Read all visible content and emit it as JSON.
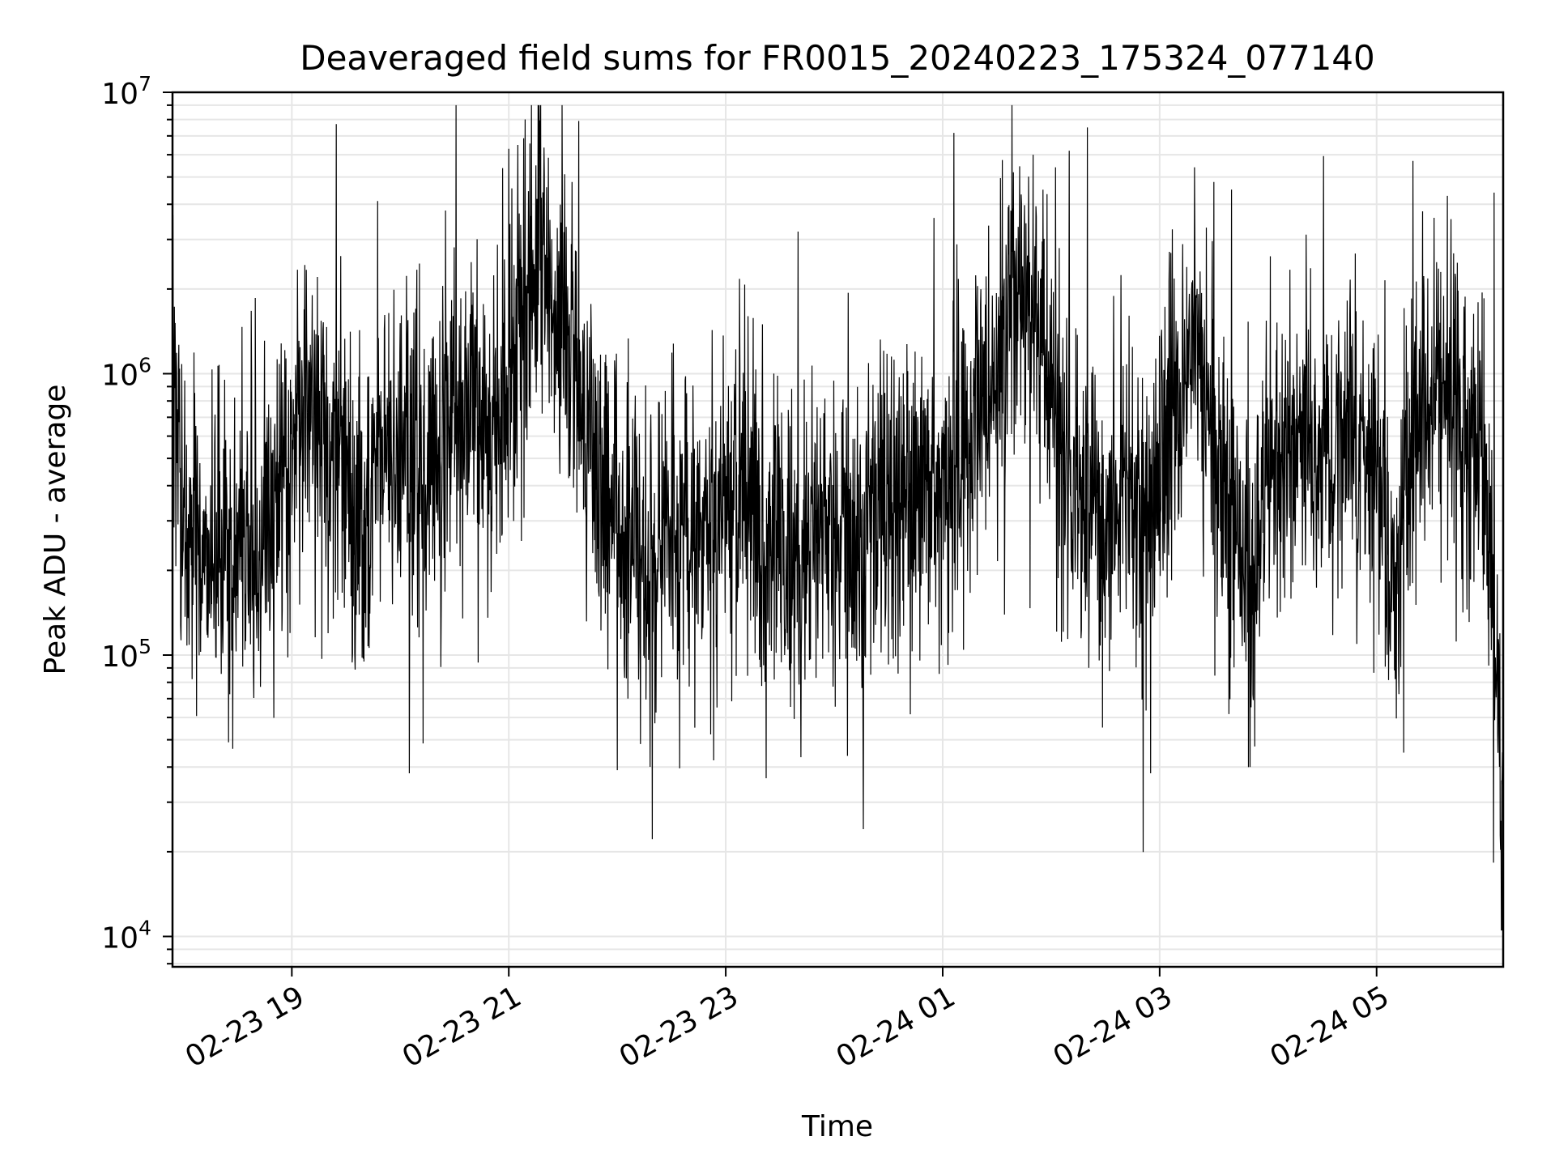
{
  "chart_data": {
    "type": "line",
    "title": "Deaveraged field sums for FR0015_20240223_175324_077140",
    "xlabel": "Time",
    "ylabel": "Peak ADU - average",
    "y_scale": "log",
    "ylim": [
      7800,
      10000000
    ],
    "xlim": [
      "2024-02-23 17:54",
      "2024-02-24 06:10"
    ],
    "x_ticks": [
      {
        "value": "2024-02-23 19:00",
        "label": "02-23 19"
      },
      {
        "value": "2024-02-23 21:00",
        "label": "02-23 21"
      },
      {
        "value": "2024-02-23 23:00",
        "label": "02-23 23"
      },
      {
        "value": "2024-02-24 01:00",
        "label": "02-24 01"
      },
      {
        "value": "2024-02-24 03:00",
        "label": "02-24 03"
      },
      {
        "value": "2024-02-24 05:00",
        "label": "02-24 05"
      }
    ],
    "y_ticks": [
      {
        "value": 10000,
        "base": "10",
        "exp": "4"
      },
      {
        "value": 100000,
        "base": "10",
        "exp": "5"
      },
      {
        "value": 1000000,
        "base": "10",
        "exp": "6"
      },
      {
        "value": 10000000,
        "base": "10",
        "exp": "7"
      }
    ],
    "grid": true,
    "line_color": "#000000",
    "series": [
      {
        "x": [
          "2024-02-23 17:54",
          "2024-02-23 18:00",
          "2024-02-23 18:10",
          "2024-02-23 18:20",
          "2024-02-23 18:30",
          "2024-02-23 18:40",
          "2024-02-23 18:50",
          "2024-02-23 19:00",
          "2024-02-23 19:10",
          "2024-02-23 19:20",
          "2024-02-23 19:30",
          "2024-02-23 19:40",
          "2024-02-23 19:50",
          "2024-02-23 20:00",
          "2024-02-23 20:10",
          "2024-02-23 20:20",
          "2024-02-23 20:30",
          "2024-02-23 20:40",
          "2024-02-23 20:50",
          "2024-02-23 21:00",
          "2024-02-23 21:10",
          "2024-02-23 21:20",
          "2024-02-23 21:30",
          "2024-02-23 21:40",
          "2024-02-23 21:50",
          "2024-02-23 22:00",
          "2024-02-23 22:10",
          "2024-02-23 22:20",
          "2024-02-23 22:30",
          "2024-02-23 22:40",
          "2024-02-23 22:50",
          "2024-02-23 23:00",
          "2024-02-23 23:10",
          "2024-02-23 23:20",
          "2024-02-23 23:30",
          "2024-02-23 23:40",
          "2024-02-23 23:50",
          "2024-02-24 00:00",
          "2024-02-24 00:10",
          "2024-02-24 00:20",
          "2024-02-24 00:30",
          "2024-02-24 00:40",
          "2024-02-24 00:50",
          "2024-02-24 01:00",
          "2024-02-24 01:10",
          "2024-02-24 01:20",
          "2024-02-24 01:30",
          "2024-02-24 01:40",
          "2024-02-24 01:50",
          "2024-02-24 02:00",
          "2024-02-24 02:10",
          "2024-02-24 02:20",
          "2024-02-24 02:30",
          "2024-02-24 02:40",
          "2024-02-24 02:50",
          "2024-02-24 03:00",
          "2024-02-24 03:10",
          "2024-02-24 03:20",
          "2024-02-24 03:30",
          "2024-02-24 03:40",
          "2024-02-24 03:50",
          "2024-02-24 04:00",
          "2024-02-24 04:10",
          "2024-02-24 04:20",
          "2024-02-24 04:30",
          "2024-02-24 04:40",
          "2024-02-24 04:50",
          "2024-02-24 05:00",
          "2024-02-24 05:10",
          "2024-02-24 05:20",
          "2024-02-24 05:30",
          "2024-02-24 05:40",
          "2024-02-24 05:50",
          "2024-02-24 06:00",
          "2024-02-24 06:10"
        ],
        "y": [
          1200000,
          300000,
          250000,
          200000,
          300000,
          250000,
          350000,
          600000,
          900000,
          500000,
          400000,
          300000,
          500000,
          600000,
          500000,
          450000,
          800000,
          700000,
          600000,
          900000,
          2000000,
          2500000,
          1500000,
          800000,
          400000,
          300000,
          250000,
          200000,
          300000,
          250000,
          300000,
          350000,
          400000,
          300000,
          250000,
          200000,
          300000,
          280000,
          250000,
          300000,
          350000,
          300000,
          350000,
          400000,
          500000,
          700000,
          1200000,
          2000000,
          1500000,
          800000,
          400000,
          350000,
          300000,
          400000,
          250000,
          500000,
          900000,
          1300000,
          600000,
          300000,
          200000,
          400000,
          500000,
          600000,
          400000,
          500000,
          500000,
          400000,
          200000,
          600000,
          800000,
          1000000,
          500000,
          500000,
          30000
        ],
        "peaks_high": [
          {
            "x": "2024-02-23 20:25",
            "y": 3800000
          },
          {
            "x": "2024-02-23 21:00",
            "y": 6300000
          },
          {
            "x": "2024-02-23 21:05",
            "y": 6500000
          },
          {
            "x": "2024-02-23 21:15",
            "y": 5500000
          },
          {
            "x": "2024-02-23 21:35",
            "y": 4800000
          },
          {
            "x": "2024-02-23 23:40",
            "y": 3200000
          },
          {
            "x": "2024-02-24 01:50",
            "y": 6000000
          },
          {
            "x": "2024-02-24 02:10",
            "y": 6200000
          },
          {
            "x": "2024-02-24 02:20",
            "y": 7500000
          },
          {
            "x": "2024-02-24 03:30",
            "y": 4800000
          },
          {
            "x": "2024-02-24 06:05",
            "y": 4400000
          }
        ],
        "peaks_low": [
          {
            "x": "2024-02-23 18:25",
            "y": 49000
          },
          {
            "x": "2024-02-23 20:05",
            "y": 38000
          },
          {
            "x": "2024-02-23 22:00",
            "y": 39000
          },
          {
            "x": "2024-02-24 02:55",
            "y": 38000
          },
          {
            "x": "2024-02-24 03:50",
            "y": 40000
          },
          {
            "x": "2024-02-24 05:15",
            "y": 45000
          },
          {
            "x": "2024-02-24 06:09",
            "y": 10500
          }
        ]
      }
    ]
  }
}
